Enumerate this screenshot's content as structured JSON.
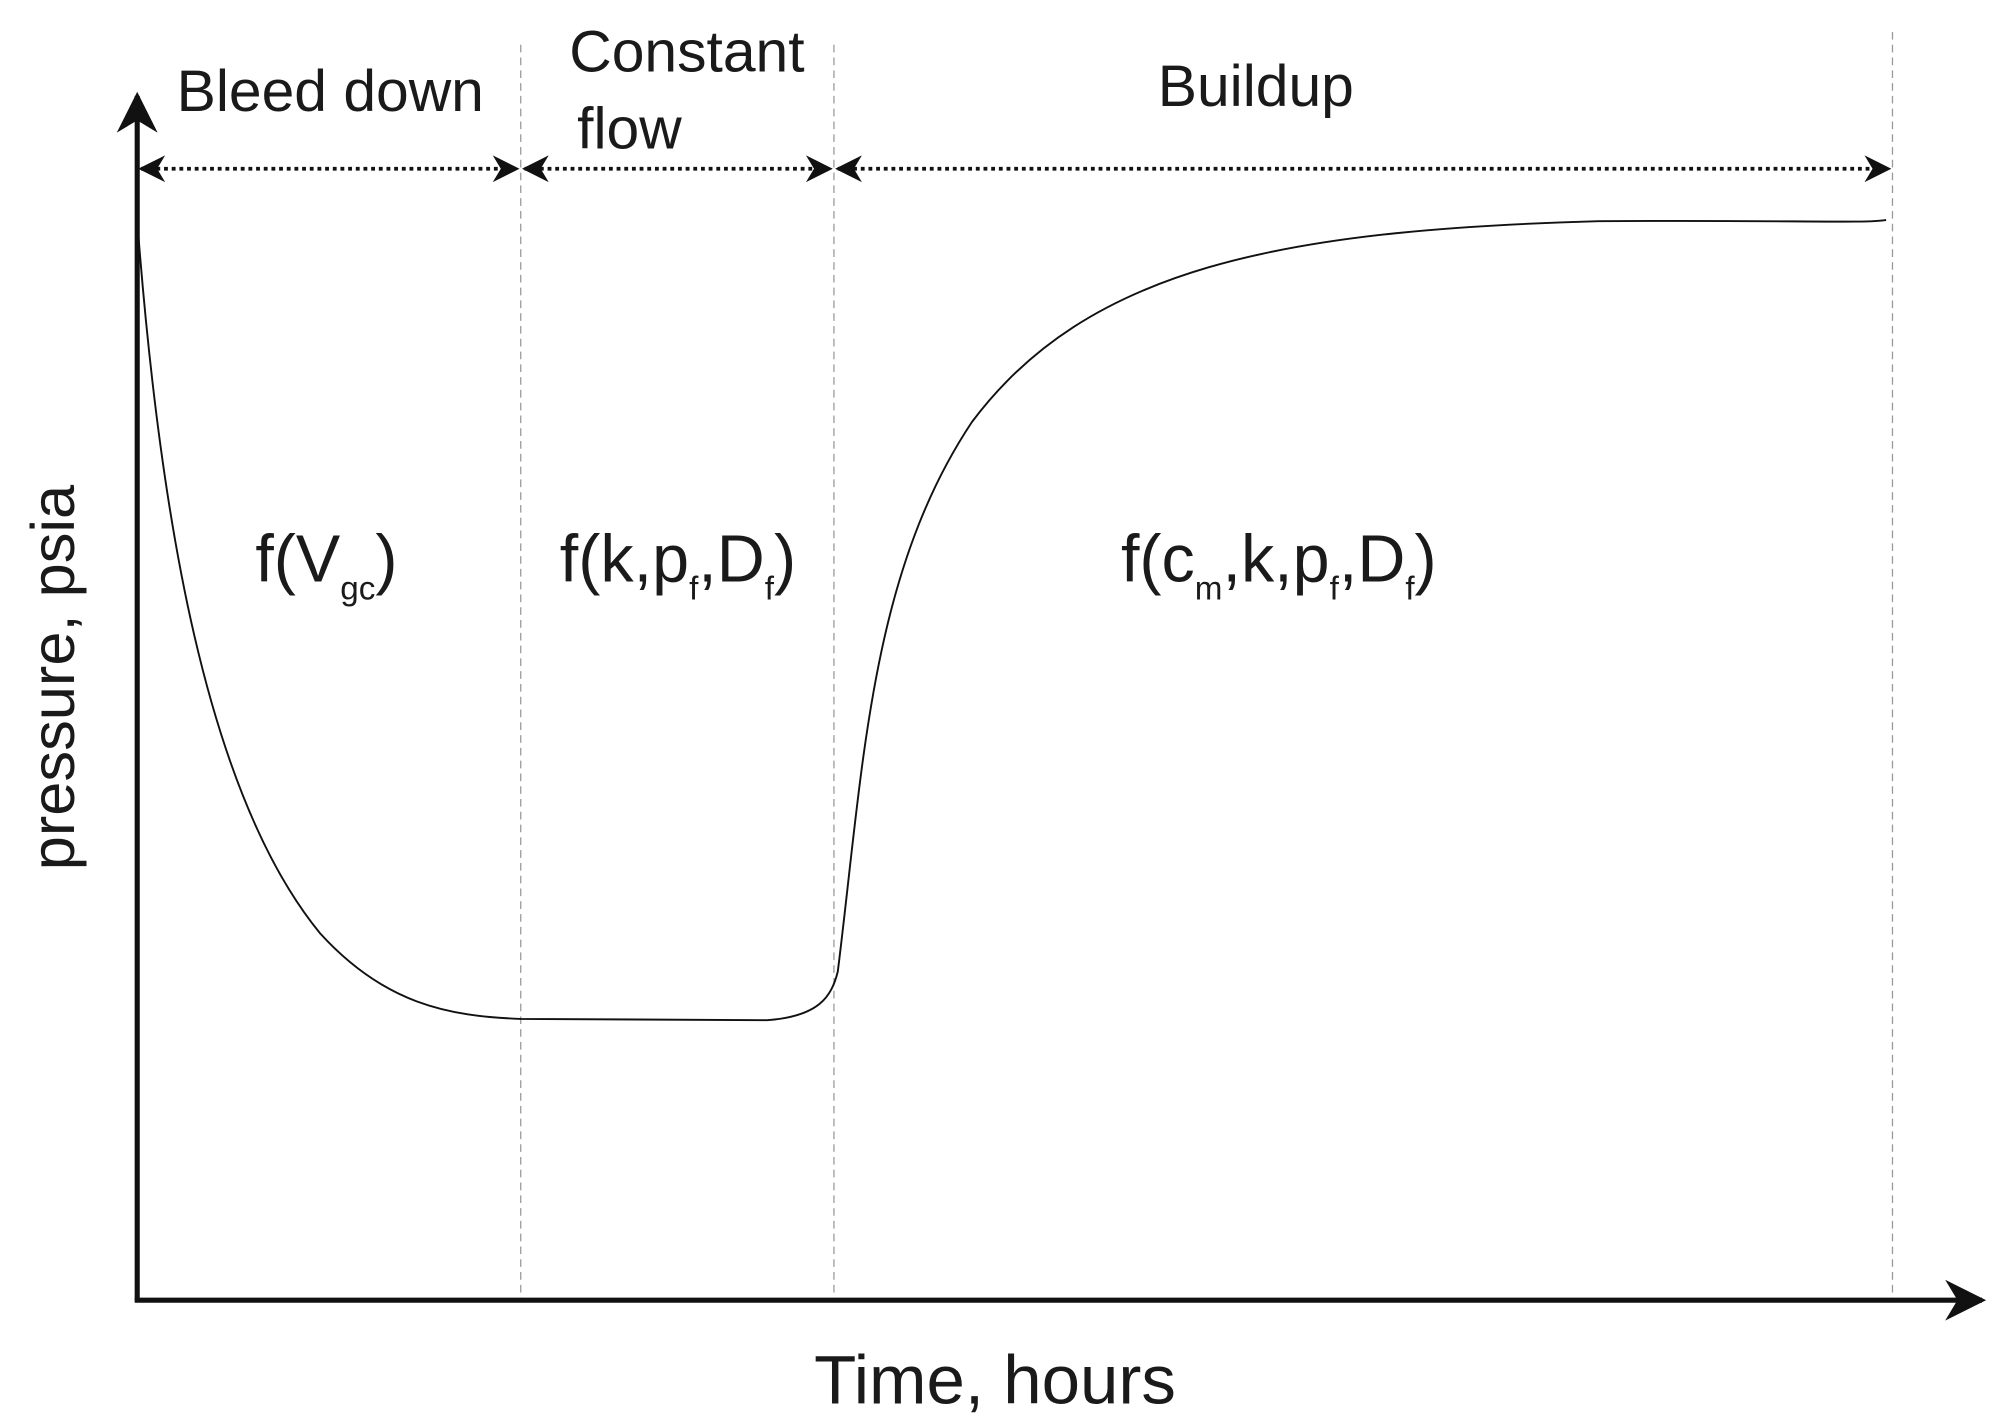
{
  "y_axis_label": "pressure, psia",
  "x_axis_label": "Time, hours",
  "phases": [
    {
      "label": [
        "Bleed down"
      ],
      "function": [
        {
          "t": "f(V"
        },
        {
          "sub": "gc"
        },
        {
          "t": ")"
        }
      ]
    },
    {
      "label": [
        "Constant",
        "flow"
      ],
      "function": [
        {
          "t": "f(k,p"
        },
        {
          "sub": "f"
        },
        {
          "t": ",D"
        },
        {
          "sub": "f"
        },
        {
          "t": ")"
        }
      ]
    },
    {
      "label": [
        "Buildup"
      ],
      "function": [
        {
          "t": "f(c"
        },
        {
          "sub": "m"
        },
        {
          "t": ",k,p"
        },
        {
          "sub": "f"
        },
        {
          "t": ",D"
        },
        {
          "sub": "f"
        },
        {
          "t": ")"
        }
      ]
    }
  ]
}
